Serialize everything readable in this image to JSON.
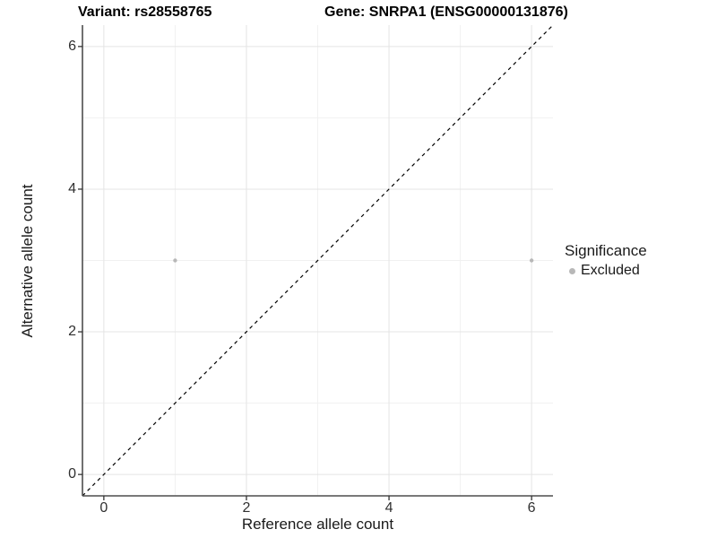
{
  "title_left": "Variant: rs28558765",
  "title_right": "Gene: SNRPA1 (ENSG00000131876)",
  "chart_data": {
    "type": "scatter",
    "title": "Variant: rs28558765   Gene: SNRPA1 (ENSG00000131876)",
    "xlabel": "Reference allele count",
    "ylabel": "Alternative allele count",
    "xlim": [
      -0.3,
      6.3
    ],
    "ylim": [
      -0.3,
      6.3
    ],
    "x_major_ticks": [
      0,
      2,
      4,
      6
    ],
    "y_major_ticks": [
      0,
      2,
      4,
      6
    ],
    "x_minor_ticks": [
      1,
      3,
      5
    ],
    "y_minor_ticks": [
      1,
      3,
      5
    ],
    "grid": true,
    "identity_line": {
      "style": "dashed",
      "color": "#000000",
      "slope": 1,
      "intercept": 0
    },
    "series": [
      {
        "name": "Excluded",
        "color": "#b8b8b8",
        "points": [
          {
            "x": 1,
            "y": 3
          },
          {
            "x": 6,
            "y": 3
          }
        ]
      }
    ],
    "legend": {
      "title": "Significance",
      "position": "right",
      "items": [
        {
          "label": "Excluded",
          "color": "#b8b8b8"
        }
      ]
    },
    "style": {
      "grid_major_color": "#e4e4e4",
      "grid_minor_color": "#f1f1f1",
      "axis_line_color": "#4d4d4d",
      "tick_mark_color": "#333333",
      "point_radius": 2.2
    }
  }
}
